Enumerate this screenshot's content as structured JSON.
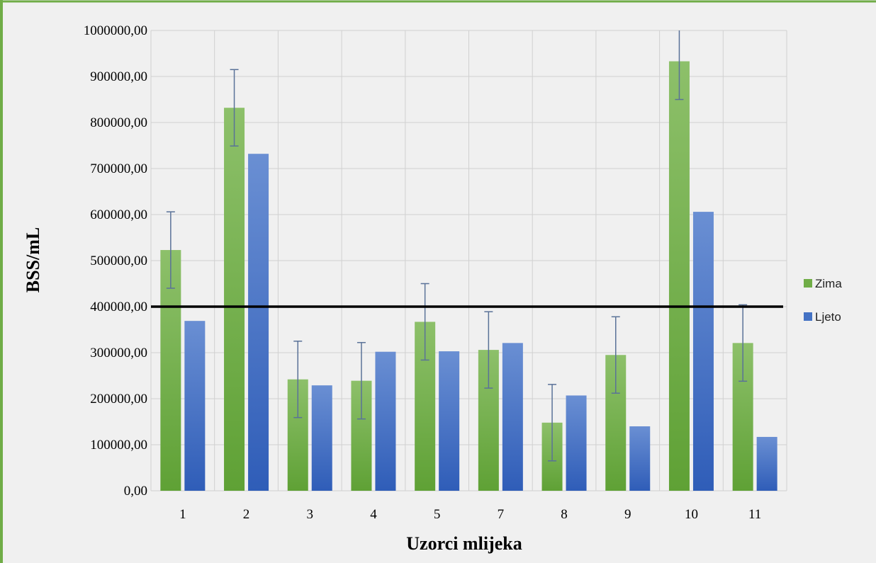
{
  "chart_data": {
    "type": "bar",
    "xlabel": "Uzorci mlijeka",
    "ylabel": "BSS/mL",
    "categories": [
      "1",
      "2",
      "3",
      "4",
      "5",
      "7",
      "8",
      "9",
      "10",
      "11"
    ],
    "ylim": [
      0,
      1000000
    ],
    "yticks": [
      0,
      100000,
      200000,
      300000,
      400000,
      500000,
      600000,
      700000,
      800000,
      900000,
      1000000
    ],
    "ytick_labels": [
      "0,00",
      "100000,00",
      "200000,00",
      "300000,00",
      "400000,00",
      "500000,00",
      "600000,00",
      "700000,00",
      "800000,00",
      "900000,00",
      "1000000,00"
    ],
    "series": [
      {
        "name": "Zima",
        "color": "#70AD47",
        "values": [
          523000,
          832000,
          242000,
          239000,
          367000,
          306000,
          148000,
          295000,
          933000,
          321000
        ],
        "error": [
          83000,
          83000,
          83000,
          83000,
          83000,
          83000,
          83000,
          83000,
          83000,
          83000
        ]
      },
      {
        "name": "Ljeto",
        "color": "#4472C4",
        "values": [
          369000,
          732000,
          229000,
          302000,
          303000,
          321000,
          207000,
          140000,
          606000,
          117000
        ]
      }
    ],
    "reference_line": {
      "value": 400000,
      "color": "#000000"
    },
    "grid": true,
    "legend": "right",
    "background": "#F0F0F0",
    "frame_color": "#70AD47",
    "error_bar_color": "#5A7298"
  }
}
